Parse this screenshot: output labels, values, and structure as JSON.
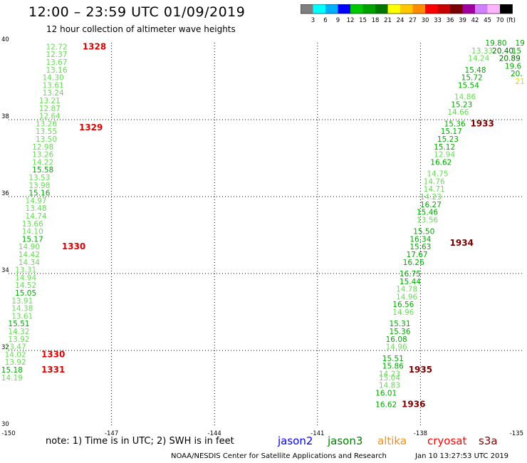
{
  "title": "12:00 – 23:59 UTC 01/09/2019",
  "subtitle": "12 hour collection of altimeter wave heights",
  "colorbar": {
    "labels": [
      "3",
      "6",
      "9",
      "12",
      "15",
      "18",
      "21",
      "24",
      "27",
      "30",
      "33",
      "36",
      "39",
      "42",
      "45",
      "70"
    ],
    "unit": "(ft)",
    "colors": [
      "#7f7f7f",
      "#00ffff",
      "#00b0ff",
      "#0000ff",
      "#00c800",
      "#00a000",
      "#007800",
      "#ffff00",
      "#ffc800",
      "#ff8c00",
      "#ff0000",
      "#c80000",
      "#780000",
      "#a000a0",
      "#d080ff",
      "#ffb4ff",
      "#000000"
    ]
  },
  "footer": {
    "note": "note:  1) Time is in UTC;  2) SWH is in feet",
    "satellites": [
      {
        "name": "jason2",
        "color": "#0000ff"
      },
      {
        "name": "jason3",
        "color": "#008000"
      },
      {
        "name": "altika",
        "color": "#ff8c00"
      },
      {
        "name": "cryosat",
        "color": "#ff0000"
      },
      {
        "name": "s3a",
        "color": "#800000"
      }
    ],
    "credit": "NOAA/NESDIS Center for Satellite Applications and Research",
    "timestamp": "Jan 10 13:27:53 UTC 2019"
  },
  "chart_data": {
    "type": "scatter",
    "title": "12:00 – 23:59 UTC 01/09/2019",
    "subtitle": "12 hour collection of altimeter wave heights",
    "xlim": [
      -150,
      -135
    ],
    "ylim": [
      30,
      40
    ],
    "x_ticks": [
      "-150",
      "-147",
      "-144",
      "-141",
      "-138",
      "-135"
    ],
    "x_tick_values": [
      -150,
      -147,
      -144,
      -141,
      -138,
      -135
    ],
    "y_ticks": [
      "30",
      "32",
      "34",
      "36",
      "38",
      "40"
    ],
    "y_tick_values": [
      30,
      32,
      34,
      36,
      38,
      40
    ],
    "grid": true,
    "colors": {
      "light": "#66dd55",
      "medium": "#00aa00",
      "dark": "#006600",
      "yellow": "#dddd00",
      "pass_red": "#dd0000",
      "pass_dark": "#7a0000"
    },
    "series": [
      {
        "points": [
          {
            "lon": -148.6,
            "lat": 39.9,
            "swh": "12.72",
            "c": "light"
          },
          {
            "lon": -148.6,
            "lat": 39.7,
            "swh": "12.37",
            "c": "light"
          },
          {
            "lon": -148.6,
            "lat": 39.5,
            "swh": "13.67",
            "c": "light"
          },
          {
            "lon": -148.6,
            "lat": 39.3,
            "swh": "13.16",
            "c": "light"
          },
          {
            "lon": -148.7,
            "lat": 39.1,
            "swh": "14.30",
            "c": "light"
          },
          {
            "lon": -148.7,
            "lat": 38.9,
            "swh": "13.61",
            "c": "light"
          },
          {
            "lon": -148.7,
            "lat": 38.7,
            "swh": "13.24",
            "c": "light"
          },
          {
            "lon": -148.8,
            "lat": 38.5,
            "swh": "13.21",
            "c": "light"
          },
          {
            "lon": -148.8,
            "lat": 38.3,
            "swh": "12.87",
            "c": "light"
          },
          {
            "lon": -148.8,
            "lat": 38.1,
            "swh": "12.64",
            "c": "light"
          },
          {
            "lon": -148.9,
            "lat": 37.9,
            "swh": "13.26",
            "c": "light"
          },
          {
            "lon": -148.9,
            "lat": 37.7,
            "swh": "13.55",
            "c": "light"
          },
          {
            "lon": -148.9,
            "lat": 37.5,
            "swh": "13.50",
            "c": "light"
          },
          {
            "lon": -149.0,
            "lat": 37.3,
            "swh": "12.98",
            "c": "light"
          },
          {
            "lon": -149.0,
            "lat": 37.1,
            "swh": "13.26",
            "c": "light"
          },
          {
            "lon": -149.0,
            "lat": 36.9,
            "swh": "14.22",
            "c": "light"
          },
          {
            "lon": -149.0,
            "lat": 36.7,
            "swh": "15.58",
            "c": "medium"
          },
          {
            "lon": -149.1,
            "lat": 36.5,
            "swh": "13.53",
            "c": "light"
          },
          {
            "lon": -149.1,
            "lat": 36.3,
            "swh": "13.98",
            "c": "light"
          },
          {
            "lon": -149.1,
            "lat": 36.1,
            "swh": "15.16",
            "c": "medium"
          },
          {
            "lon": -149.2,
            "lat": 35.9,
            "swh": "14.97",
            "c": "light"
          },
          {
            "lon": -149.2,
            "lat": 35.7,
            "swh": "13.48",
            "c": "light"
          },
          {
            "lon": -149.2,
            "lat": 35.5,
            "swh": "14.74",
            "c": "light"
          },
          {
            "lon": -149.3,
            "lat": 35.3,
            "swh": "13.66",
            "c": "light"
          },
          {
            "lon": -149.3,
            "lat": 35.1,
            "swh": "14.10",
            "c": "light"
          },
          {
            "lon": -149.3,
            "lat": 34.9,
            "swh": "15.17",
            "c": "medium"
          },
          {
            "lon": -149.4,
            "lat": 34.7,
            "swh": "14.90",
            "c": "light"
          },
          {
            "lon": -149.4,
            "lat": 34.5,
            "swh": "14.42",
            "c": "light"
          },
          {
            "lon": -149.4,
            "lat": 34.3,
            "swh": "14.34",
            "c": "light"
          },
          {
            "lon": -149.5,
            "lat": 34.1,
            "swh": "13.31",
            "c": "light"
          },
          {
            "lon": -149.5,
            "lat": 33.9,
            "swh": "14.94",
            "c": "light"
          },
          {
            "lon": -149.5,
            "lat": 33.7,
            "swh": "14.52",
            "c": "light"
          },
          {
            "lon": -149.5,
            "lat": 33.5,
            "swh": "15.05",
            "c": "medium"
          },
          {
            "lon": -149.6,
            "lat": 33.3,
            "swh": "13.91",
            "c": "light"
          },
          {
            "lon": -149.6,
            "lat": 33.1,
            "swh": "14.38",
            "c": "light"
          },
          {
            "lon": -149.6,
            "lat": 32.9,
            "swh": "13.61",
            "c": "light"
          },
          {
            "lon": -149.7,
            "lat": 32.7,
            "swh": "15.51",
            "c": "medium"
          },
          {
            "lon": -149.7,
            "lat": 32.5,
            "swh": "14.32",
            "c": "light"
          },
          {
            "lon": -149.7,
            "lat": 32.3,
            "swh": "13.92",
            "c": "light"
          },
          {
            "lon": -149.8,
            "lat": 32.1,
            "swh": "13.47",
            "c": "light"
          },
          {
            "lon": -149.8,
            "lat": 31.9,
            "swh": "14.02",
            "c": "light"
          },
          {
            "lon": -149.8,
            "lat": 31.7,
            "swh": "13.92",
            "c": "light"
          },
          {
            "lon": -149.9,
            "lat": 31.5,
            "swh": "15.18",
            "c": "medium"
          },
          {
            "lon": -149.9,
            "lat": 31.3,
            "swh": "14.19",
            "c": "light"
          }
        ]
      },
      {
        "points": [
          {
            "lon": -135.8,
            "lat": 40.0,
            "swh": "19.80",
            "c": "medium"
          },
          {
            "lon": -135.1,
            "lat": 40.0,
            "swh": "19",
            "c": "medium"
          },
          {
            "lon": -136.2,
            "lat": 39.8,
            "swh": "13.33",
            "c": "light"
          },
          {
            "lon": -135.6,
            "lat": 39.8,
            "swh": "20.40",
            "c": "dark"
          },
          {
            "lon": -135.2,
            "lat": 39.8,
            "swh": "15",
            "c": "medium"
          },
          {
            "lon": -135.4,
            "lat": 39.6,
            "swh": "20.89",
            "c": "dark"
          },
          {
            "lon": -136.3,
            "lat": 39.6,
            "swh": "14.24",
            "c": "light"
          },
          {
            "lon": -135.3,
            "lat": 39.4,
            "swh": "19.6",
            "c": "medium"
          },
          {
            "lon": -136.4,
            "lat": 39.3,
            "swh": "15.48",
            "c": "medium"
          },
          {
            "lon": -135.2,
            "lat": 39.2,
            "swh": "20.",
            "c": "medium"
          },
          {
            "lon": -136.5,
            "lat": 39.1,
            "swh": "15.72",
            "c": "medium"
          },
          {
            "lon": -135.1,
            "lat": 39.0,
            "swh": "21",
            "c": "yellow"
          },
          {
            "lon": -136.6,
            "lat": 38.9,
            "swh": "15.54",
            "c": "medium"
          },
          {
            "lon": -136.7,
            "lat": 38.6,
            "swh": "14.86",
            "c": "light"
          },
          {
            "lon": -136.8,
            "lat": 38.4,
            "swh": "15.23",
            "c": "medium"
          },
          {
            "lon": -136.9,
            "lat": 38.2,
            "swh": "14.66",
            "c": "light"
          },
          {
            "lon": -137.0,
            "lat": 37.9,
            "swh": "15.36",
            "c": "medium"
          },
          {
            "lon": -137.1,
            "lat": 37.7,
            "swh": "15.17",
            "c": "medium"
          },
          {
            "lon": -137.2,
            "lat": 37.5,
            "swh": "15.23",
            "c": "medium"
          },
          {
            "lon": -137.3,
            "lat": 37.3,
            "swh": "15.12",
            "c": "medium"
          },
          {
            "lon": -137.3,
            "lat": 37.1,
            "swh": "12.94",
            "c": "light"
          },
          {
            "lon": -137.4,
            "lat": 36.9,
            "swh": "16.62",
            "c": "medium"
          },
          {
            "lon": -137.5,
            "lat": 36.6,
            "swh": "14.75",
            "c": "light"
          },
          {
            "lon": -137.6,
            "lat": 36.4,
            "swh": "14.76",
            "c": "light"
          },
          {
            "lon": -137.6,
            "lat": 36.2,
            "swh": "14.71",
            "c": "light"
          },
          {
            "lon": -137.7,
            "lat": 36.0,
            "swh": "14.23",
            "c": "light"
          },
          {
            "lon": -137.7,
            "lat": 35.8,
            "swh": "16.27",
            "c": "medium"
          },
          {
            "lon": -137.8,
            "lat": 35.6,
            "swh": "15.46",
            "c": "medium"
          },
          {
            "lon": -137.8,
            "lat": 35.4,
            "swh": "13.56",
            "c": "light"
          },
          {
            "lon": -137.9,
            "lat": 35.1,
            "swh": "15.50",
            "c": "medium"
          },
          {
            "lon": -138.0,
            "lat": 34.9,
            "swh": "16.34",
            "c": "medium"
          },
          {
            "lon": -138.0,
            "lat": 34.7,
            "swh": "15.63",
            "c": "medium"
          },
          {
            "lon": -138.1,
            "lat": 34.5,
            "swh": "17.67",
            "c": "medium"
          },
          {
            "lon": -138.2,
            "lat": 34.3,
            "swh": "16.26",
            "c": "medium"
          },
          {
            "lon": -138.3,
            "lat": 34.0,
            "swh": "16.75",
            "c": "medium"
          },
          {
            "lon": -138.3,
            "lat": 33.8,
            "swh": "15.44",
            "c": "medium"
          },
          {
            "lon": -138.4,
            "lat": 33.6,
            "swh": "14.78",
            "c": "light"
          },
          {
            "lon": -138.4,
            "lat": 33.4,
            "swh": "14.96",
            "c": "light"
          },
          {
            "lon": -138.5,
            "lat": 33.2,
            "swh": "16.56",
            "c": "medium"
          },
          {
            "lon": -138.5,
            "lat": 33.0,
            "swh": "14.96",
            "c": "light"
          },
          {
            "lon": -138.6,
            "lat": 32.7,
            "swh": "15.31",
            "c": "medium"
          },
          {
            "lon": -138.6,
            "lat": 32.5,
            "swh": "15.36",
            "c": "medium"
          },
          {
            "lon": -138.7,
            "lat": 32.3,
            "swh": "16.08",
            "c": "medium"
          },
          {
            "lon": -138.7,
            "lat": 32.1,
            "swh": "14.96",
            "c": "light"
          },
          {
            "lon": -138.8,
            "lat": 31.8,
            "swh": "15.51",
            "c": "medium"
          },
          {
            "lon": -138.8,
            "lat": 31.6,
            "swh": "15.86",
            "c": "medium"
          },
          {
            "lon": -138.9,
            "lat": 31.4,
            "swh": "14.23",
            "c": "light"
          },
          {
            "lon": -138.9,
            "lat": 31.3,
            "swh": "15.04",
            "c": "light"
          },
          {
            "lon": -138.9,
            "lat": 31.1,
            "swh": "14.83",
            "c": "light"
          },
          {
            "lon": -139.0,
            "lat": 30.9,
            "swh": "16.01",
            "c": "medium"
          },
          {
            "lon": -139.0,
            "lat": 30.6,
            "swh": "16.62",
            "c": "medium"
          }
        ]
      }
    ],
    "pass_labels": [
      {
        "lon": -147.5,
        "lat": 39.9,
        "text": "1328",
        "c": "pass_red"
      },
      {
        "lon": -147.6,
        "lat": 37.8,
        "text": "1329",
        "c": "pass_red"
      },
      {
        "lon": -148.1,
        "lat": 34.7,
        "text": "1330",
        "c": "pass_red"
      },
      {
        "lon": -148.7,
        "lat": 31.9,
        "text": "1330",
        "c": "pass_red"
      },
      {
        "lon": -148.7,
        "lat": 31.5,
        "text": "1331",
        "c": "pass_red"
      },
      {
        "lon": -136.2,
        "lat": 37.9,
        "text": "1933",
        "c": "pass_dark"
      },
      {
        "lon": -136.8,
        "lat": 34.8,
        "text": "1934",
        "c": "pass_dark"
      },
      {
        "lon": -138.0,
        "lat": 31.5,
        "text": "1935",
        "c": "pass_dark"
      },
      {
        "lon": -138.2,
        "lat": 30.6,
        "text": "1936",
        "c": "pass_dark"
      }
    ]
  }
}
